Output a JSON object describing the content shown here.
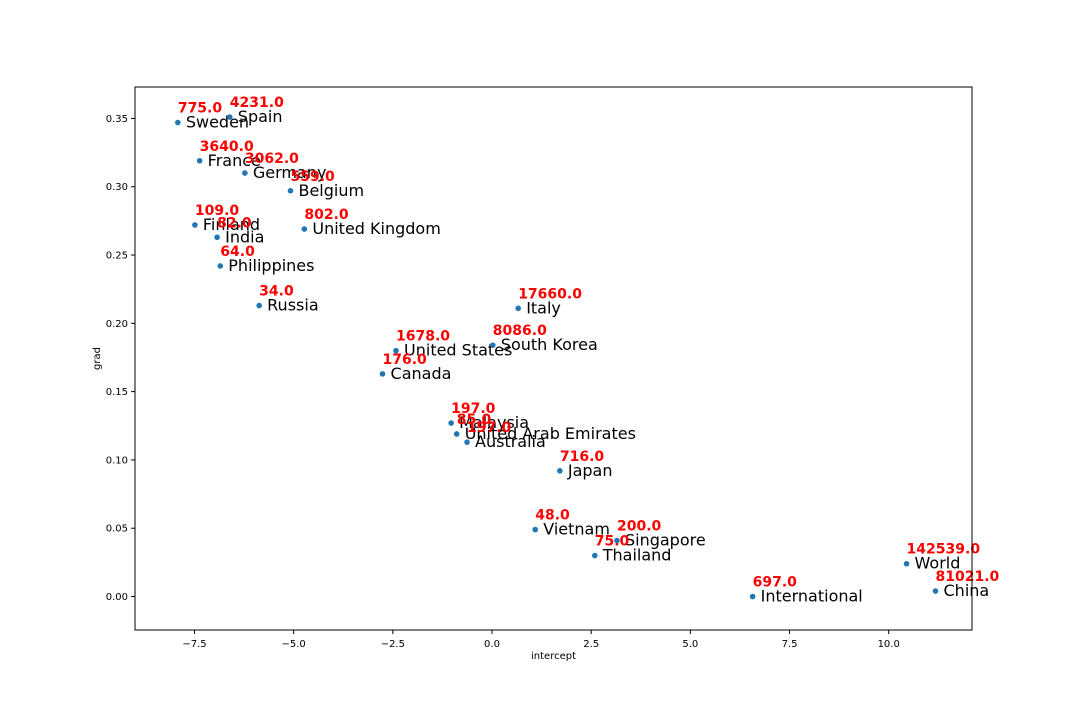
{
  "chart_data": {
    "type": "scatter",
    "xlabel": "intercept",
    "ylabel": "grad",
    "xlim": [
      -9.0,
      12.1
    ],
    "ylim": [
      -0.0245,
      0.373
    ],
    "xticks": [
      -7.5,
      -5.0,
      -2.5,
      0.0,
      2.5,
      5.0,
      7.5,
      10.0
    ],
    "xtick_labels": [
      "−7.5",
      "−5.0",
      "−2.5",
      "0.0",
      "2.5",
      "5.0",
      "7.5",
      "10.0"
    ],
    "yticks": [
      0.0,
      0.05,
      0.1,
      0.15,
      0.2,
      0.25,
      0.3,
      0.35
    ],
    "ytick_labels": [
      "0.00",
      "0.05",
      "0.10",
      "0.15",
      "0.20",
      "0.25",
      "0.30",
      "0.35"
    ],
    "grid": false,
    "marker_color": "#1f77b4",
    "value_label_color": "#ff0000",
    "points": [
      {
        "name": "Sweden",
        "x": -7.92,
        "y": 0.347,
        "value": "775.0"
      },
      {
        "name": "Spain",
        "x": -6.61,
        "y": 0.351,
        "value": "4231.0"
      },
      {
        "name": "France",
        "x": -7.37,
        "y": 0.319,
        "value": "3640.0"
      },
      {
        "name": "Germany",
        "x": -6.23,
        "y": 0.31,
        "value": "3062.0"
      },
      {
        "name": "Belgium",
        "x": -5.08,
        "y": 0.297,
        "value": "559.0"
      },
      {
        "name": "Finland",
        "x": -7.49,
        "y": 0.272,
        "value": "109.0"
      },
      {
        "name": "India",
        "x": -6.93,
        "y": 0.263,
        "value": "82.0"
      },
      {
        "name": "United Kingdom",
        "x": -4.73,
        "y": 0.269,
        "value": "802.0"
      },
      {
        "name": "Philippines",
        "x": -6.85,
        "y": 0.242,
        "value": "64.0"
      },
      {
        "name": "Russia",
        "x": -5.87,
        "y": 0.213,
        "value": "34.0"
      },
      {
        "name": "Italy",
        "x": 0.66,
        "y": 0.211,
        "value": "17660.0"
      },
      {
        "name": "United States",
        "x": -2.42,
        "y": 0.18,
        "value": "1678.0"
      },
      {
        "name": "South Korea",
        "x": 0.02,
        "y": 0.184,
        "value": "8086.0"
      },
      {
        "name": "Canada",
        "x": -2.76,
        "y": 0.163,
        "value": "176.0"
      },
      {
        "name": "Malaysia",
        "x": -1.03,
        "y": 0.127,
        "value": "197.0"
      },
      {
        "name": "United Arab Emirates",
        "x": -0.89,
        "y": 0.119,
        "value": "85.0"
      },
      {
        "name": "Australia",
        "x": -0.63,
        "y": 0.113,
        "value": "197.0"
      },
      {
        "name": "Japan",
        "x": 1.71,
        "y": 0.092,
        "value": "716.0"
      },
      {
        "name": "Vietnam",
        "x": 1.09,
        "y": 0.049,
        "value": "48.0"
      },
      {
        "name": "Singapore",
        "x": 3.15,
        "y": 0.041,
        "value": "200.0"
      },
      {
        "name": "Thailand",
        "x": 2.59,
        "y": 0.03,
        "value": "75.0"
      },
      {
        "name": "World",
        "x": 10.45,
        "y": 0.024,
        "value": "142539.0"
      },
      {
        "name": "International",
        "x": 6.57,
        "y": 0.0,
        "value": "697.0"
      },
      {
        "name": "China",
        "x": 11.18,
        "y": 0.004,
        "value": "81021.0"
      }
    ]
  }
}
